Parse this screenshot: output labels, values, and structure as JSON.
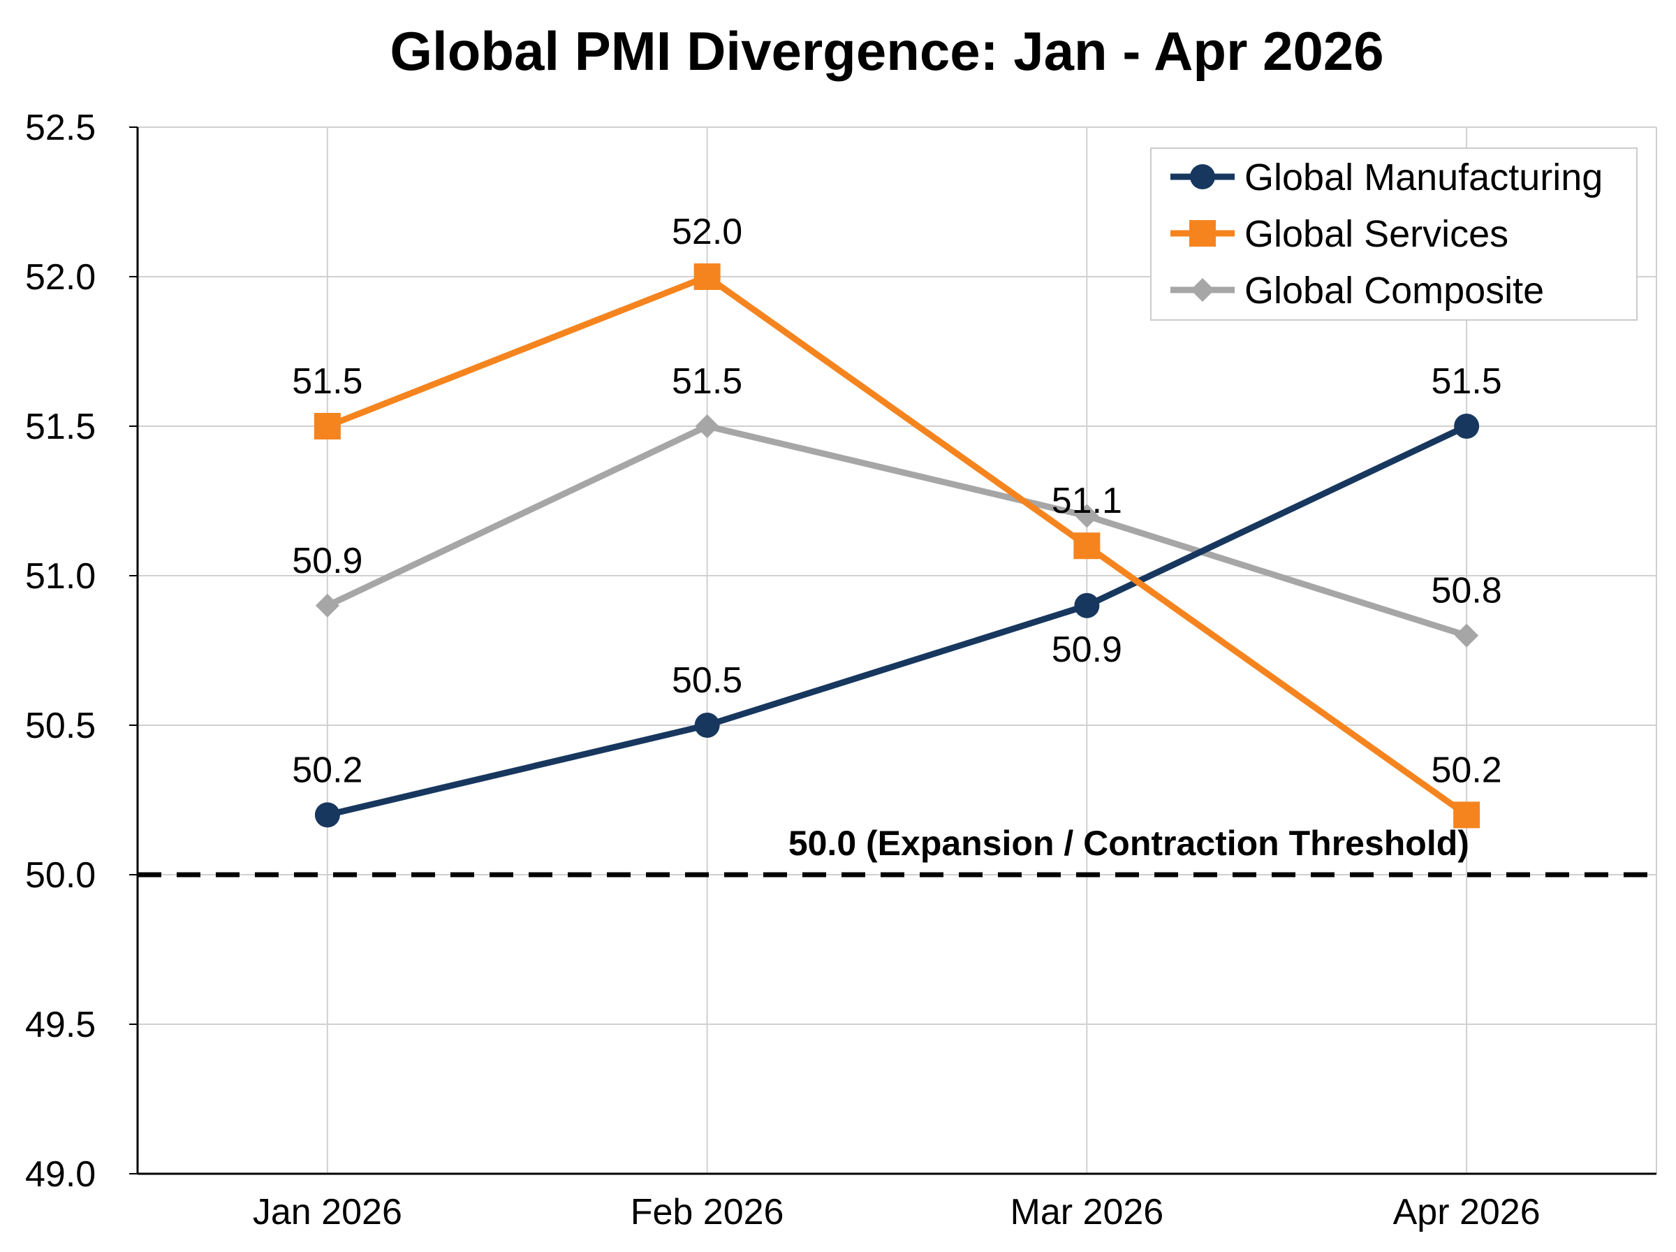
{
  "chart_data": {
    "type": "line",
    "title": "Global PMI Divergence: Jan - Apr 2026",
    "xlabel": "",
    "ylabel": "",
    "categories": [
      "Jan 2026",
      "Feb 2026",
      "Mar 2026",
      "Apr 2026"
    ],
    "ylim": [
      49.0,
      52.5
    ],
    "yticks": [
      "49.0",
      "49.5",
      "50.0",
      "50.5",
      "51.0",
      "51.5",
      "52.0",
      "52.5"
    ],
    "grid": true,
    "legend_position": "top-right",
    "series": [
      {
        "name": "Global Manufacturing",
        "color": "#17375e",
        "marker": "circle",
        "values": [
          50.2,
          50.5,
          50.9,
          51.5
        ],
        "labels": [
          "50.2",
          "50.5",
          "50.9",
          "51.5"
        ],
        "label_side": [
          "above",
          "above",
          "below",
          "above"
        ]
      },
      {
        "name": "Global Services",
        "color": "#f5841f",
        "marker": "square",
        "values": [
          51.5,
          52.0,
          51.1,
          50.2
        ],
        "labels": [
          "51.5",
          "52.0",
          "51.1",
          "50.2"
        ],
        "label_side": [
          "above",
          "above",
          "above",
          "above"
        ]
      },
      {
        "name": "Global Composite",
        "color": "#a6a6a6",
        "marker": "diamond",
        "values": [
          50.9,
          51.5,
          51.2,
          50.8
        ],
        "labels": [
          "50.9",
          "51.5",
          "",
          "50.8"
        ],
        "label_side": [
          "above",
          "above",
          "above",
          "above"
        ]
      }
    ],
    "threshold": {
      "value": 50.0,
      "label": "50.0 (Expansion / Contraction Threshold)",
      "color": "#000000",
      "style": "dashed"
    }
  }
}
